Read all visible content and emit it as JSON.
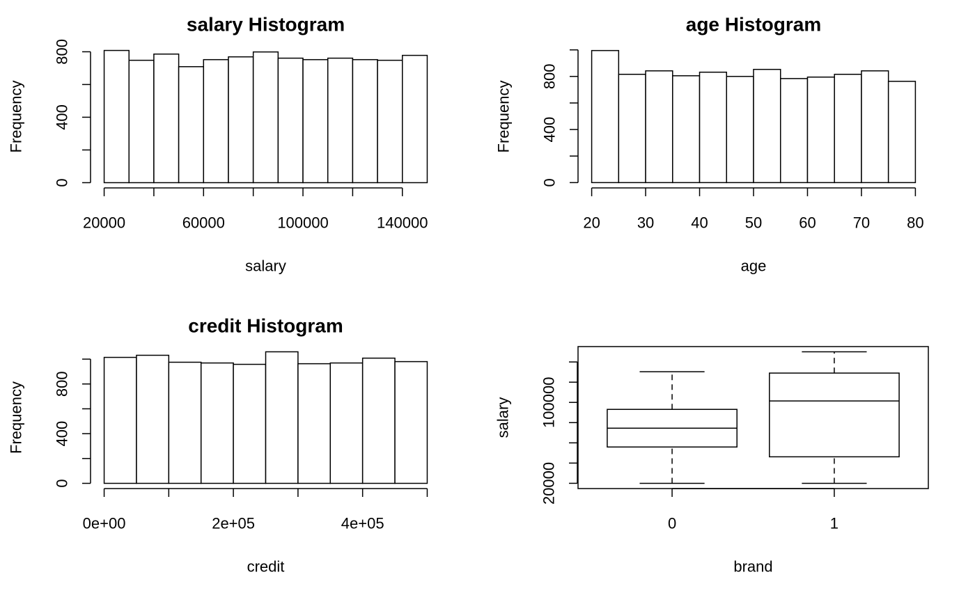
{
  "chart_data": [
    {
      "type": "histogram",
      "title": "salary Histogram",
      "x_label": "salary",
      "y_label": "Frequency",
      "bins": [
        20000,
        30000,
        40000,
        50000,
        60000,
        70000,
        80000,
        90000,
        100000,
        110000,
        120000,
        130000,
        140000,
        150000
      ],
      "counts": [
        808,
        748,
        786,
        709,
        752,
        769,
        799,
        761,
        752,
        761,
        752,
        748,
        778
      ],
      "color": "#ffffff",
      "xlim": [
        14800,
        155200
      ],
      "xticks": [
        20000,
        40000,
        60000,
        80000,
        100000,
        120000,
        140000
      ],
      "xtick_label_step": 2,
      "ylim": [
        -32,
        840
      ],
      "yticks": [
        0,
        200,
        400,
        600,
        800
      ],
      "ytick_label_step": 2
    },
    {
      "type": "histogram",
      "title": "age Histogram",
      "x_label": "age",
      "y_label": "Frequency",
      "bins": [
        20,
        25,
        30,
        35,
        40,
        45,
        50,
        55,
        60,
        65,
        70,
        75,
        80
      ],
      "counts": [
        995,
        816,
        842,
        805,
        832,
        800,
        853,
        784,
        795,
        816,
        842,
        763
      ],
      "color": "#ffffff",
      "xlim": [
        17.6,
        82.4
      ],
      "xticks": [
        20,
        30,
        40,
        50,
        60,
        70,
        80
      ],
      "xtick_label_step": 1,
      "ylim": [
        -40,
        1035
      ],
      "yticks": [
        0,
        200,
        400,
        600,
        800,
        1000
      ],
      "ytick_label_step": 2
    },
    {
      "type": "histogram",
      "title": "credit Histogram",
      "x_label": "credit",
      "y_label": "Frequency",
      "bins": [
        0,
        50000,
        100000,
        150000,
        200000,
        250000,
        300000,
        350000,
        400000,
        450000,
        500000
      ],
      "counts": [
        1014,
        1031,
        975,
        969,
        958,
        1059,
        963,
        969,
        1008,
        980
      ],
      "color": "#ffffff",
      "xlim": [
        -20000,
        520000
      ],
      "xticks": [
        {
          "value": 0,
          "label": "0e+00"
        },
        100000,
        {
          "value": 200000,
          "label": "2e+05"
        },
        300000,
        {
          "value": 400000,
          "label": "4e+05"
        },
        500000
      ],
      "xtick_label_step": 2,
      "ylim": [
        -42,
        1101
      ],
      "yticks": [
        0,
        200,
        400,
        600,
        800,
        1000
      ],
      "ytick_label_step": 2
    },
    {
      "type": "box",
      "x_label": "brand",
      "y_label": "salary",
      "categories": [
        "0",
        "1"
      ],
      "boxes": [
        {
          "min": 20000,
          "q1": 55900,
          "median": 74500,
          "q3": 93100,
          "max": 130300
        },
        {
          "min": 20000,
          "q1": 46200,
          "median": 101400,
          "q3": 129000,
          "max": 150000
        }
      ],
      "color": "#ffffff",
      "xlim": [
        0.42,
        2.58
      ],
      "ylim": [
        14800,
        155200
      ],
      "yticks": [
        20000,
        40000,
        60000,
        80000,
        100000,
        120000,
        140000
      ],
      "ytick_label_step": 4
    }
  ]
}
